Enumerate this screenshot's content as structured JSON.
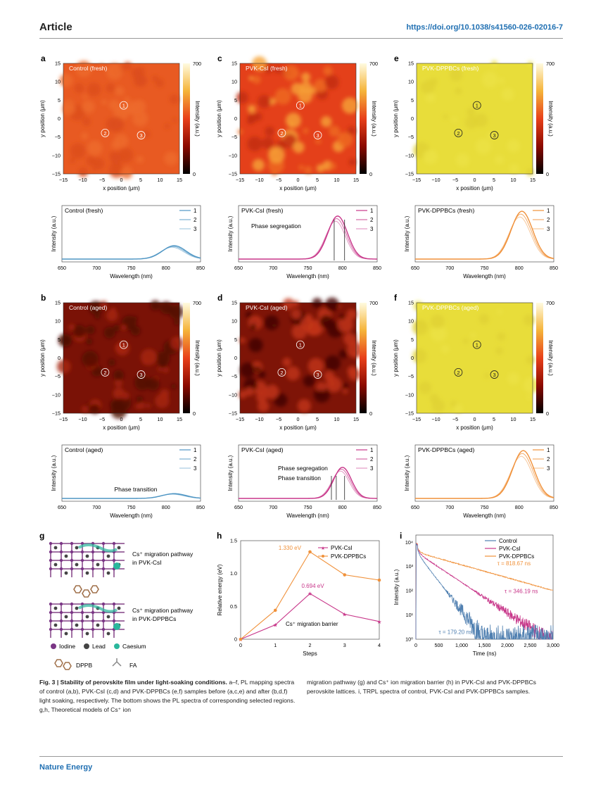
{
  "header": {
    "title": "Article",
    "doi": "https://doi.org/10.1038/s41560-026-02016-7"
  },
  "footer": {
    "journal": "Nature Energy"
  },
  "maps": [
    {
      "label": "a",
      "title": "Control (fresh)",
      "style": "orange_mild"
    },
    {
      "label": "c",
      "title": "PVK-CsI (fresh)",
      "style": "orange_spotty"
    },
    {
      "label": "e",
      "title": "PVK-DPPBCs (fresh)",
      "style": "yellow"
    },
    {
      "label": "b",
      "title": "Control (aged)",
      "style": "dark"
    },
    {
      "label": "d",
      "title": "PVK-CsI (aged)",
      "style": "dark_patchy"
    },
    {
      "label": "f",
      "title": "PVK-DPPBCs (aged)",
      "style": "yellow"
    }
  ],
  "map_axes": {
    "xlabel": "x position (μm)",
    "ylabel": "y position (μm)",
    "ticks": [
      "−15",
      "−10",
      "−5",
      "0",
      "5",
      "10",
      "15"
    ],
    "colorbar_label": "Intensity (a.u.)",
    "colorbar_max": "700",
    "colorbar_min": "0",
    "markers": [
      "1",
      "2",
      "3"
    ]
  },
  "spectra": [
    {
      "title": "Control (fresh)",
      "color": "#4f96c4",
      "peak": 812,
      "width": 24,
      "amp": 0.28,
      "annotations": []
    },
    {
      "title": "PVK-CsI (fresh)",
      "color": "#c8378a",
      "peak": 793,
      "width": 20,
      "amp": 0.9,
      "annotations": [
        "Phase segregation"
      ]
    },
    {
      "title": "PVK-DPPBCs (fresh)",
      "color": "#f0913a",
      "peak": 804,
      "width": 22,
      "amp": 1.0,
      "annotations": []
    },
    {
      "title": "Control (aged)",
      "color": "#4f96c4",
      "peak": 812,
      "width": 24,
      "amp": 0.1,
      "annotations": [
        "Phase transition"
      ]
    },
    {
      "title": "PVK-CsI (aged)",
      "color": "#c8378a",
      "peak": 800,
      "width": 18,
      "amp": 0.65,
      "annotations": [
        "Phase segregation",
        "Phase transition"
      ]
    },
    {
      "title": "PVK-DPPBCs (aged)",
      "color": "#f0913a",
      "peak": 806,
      "width": 22,
      "amp": 1.0,
      "annotations": []
    }
  ],
  "spectra_axes": {
    "xlabel": "Wavelength (nm)",
    "ylabel": "Intensity (a.u.)",
    "ticks": [
      "650",
      "700",
      "750",
      "800",
      "850"
    ],
    "legend": [
      "1",
      "2",
      "3"
    ]
  },
  "panel_g": {
    "label": "g",
    "text1": "Cs⁺ migration pathway in PVK-CsI",
    "text2": "Cs⁺ migration pathway in PVK-DPPBCs",
    "legend": [
      "Iodine",
      "Lead",
      "Caesium",
      "DPPB",
      "FA"
    ]
  },
  "chart_data": [
    {
      "type": "line",
      "label": "h",
      "xlabel": "Steps",
      "ylabel": "Relative energy (eV)",
      "x": [
        0,
        1,
        2,
        3,
        4
      ],
      "ylim": [
        0,
        1.5
      ],
      "series": [
        {
          "name": "PVK-CsI",
          "color": "#c8378a",
          "values": [
            0,
            0.22,
            0.694,
            0.38,
            0.27
          ]
        },
        {
          "name": "PVK-DPPBCs",
          "color": "#f0913a",
          "values": [
            0,
            0.44,
            1.33,
            0.98,
            0.9
          ]
        }
      ],
      "annotations": [
        "1.330 eV",
        "0.694 eV",
        "Cs⁺ migration barrier"
      ],
      "xticks": [
        "0",
        "1",
        "2",
        "3",
        "4"
      ],
      "yticks": [
        "0",
        "0.5",
        "1.0",
        "1.5"
      ]
    },
    {
      "type": "line",
      "label": "i",
      "xlabel": "Time (ns)",
      "ylabel": "Intensity (a.u.)",
      "yscale": "log",
      "xlim": [
        0,
        3000
      ],
      "ylim": [
        1,
        10000
      ],
      "series": [
        {
          "name": "Control",
          "color": "#4f7fb0",
          "tau": 179.2
        },
        {
          "name": "PVK-CsI",
          "color": "#c8378a",
          "tau": 346.19
        },
        {
          "name": "PVK-DPPBCs",
          "color": "#f0913a",
          "tau": 818.67
        }
      ],
      "annotations": [
        "τ = 818.67 ns",
        "τ = 346.19 ns",
        "τ = 179.20 ns"
      ],
      "xticks": [
        "0",
        "500",
        "1,000",
        "1,500",
        "2,000",
        "2,500",
        "3,000"
      ],
      "yticks": [
        "10⁰",
        "10¹",
        "10²",
        "10³",
        "10⁴"
      ]
    }
  ],
  "caption": {
    "left_bold": "Fig. 3 | Stability of perovskite film under light-soaking conditions.",
    "left_rest": " a–f, PL mapping spectra of control (a,b), PVK-CsI (c,d) and PVK-DPPBCs (e,f) samples before (a,c,e) and after (b,d,f) light soaking, respectively. The bottom shows the PL spectra of corresponding selected regions. g,h, Theoretical models of Cs⁺ ion",
    "right": "migration pathway (g) and Cs⁺ ion migration barrier (h) in PVK-CsI and PVK-DPPBCs perovskite lattices. i, TRPL spectra of control, PVK-CsI and PVK-DPPBCs samples."
  }
}
